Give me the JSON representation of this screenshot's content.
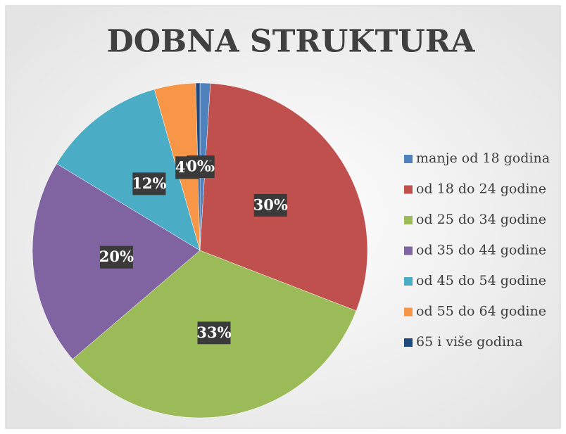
{
  "chart_data": {
    "type": "pie",
    "title": "DOBNA STRUKTURA",
    "categories": [
      "manje od 18 godina",
      "od 18 do 24 godine",
      "od 25 do 34 godine",
      "od 35 do 44 godine",
      "od 45 do 54 godine",
      "od 55 do 64 godine",
      "65 i više godina"
    ],
    "values": [
      1,
      30,
      33,
      20,
      12,
      4,
      0.4
    ],
    "value_labels": [
      "1%",
      "30%",
      "33%",
      "20%",
      "12%",
      "4%",
      "0%"
    ],
    "colors": [
      "#4f81bd",
      "#c0504d",
      "#9bbb59",
      "#8064a2",
      "#4bacc6",
      "#f79646",
      "#1f497d"
    ],
    "legend": "right"
  }
}
